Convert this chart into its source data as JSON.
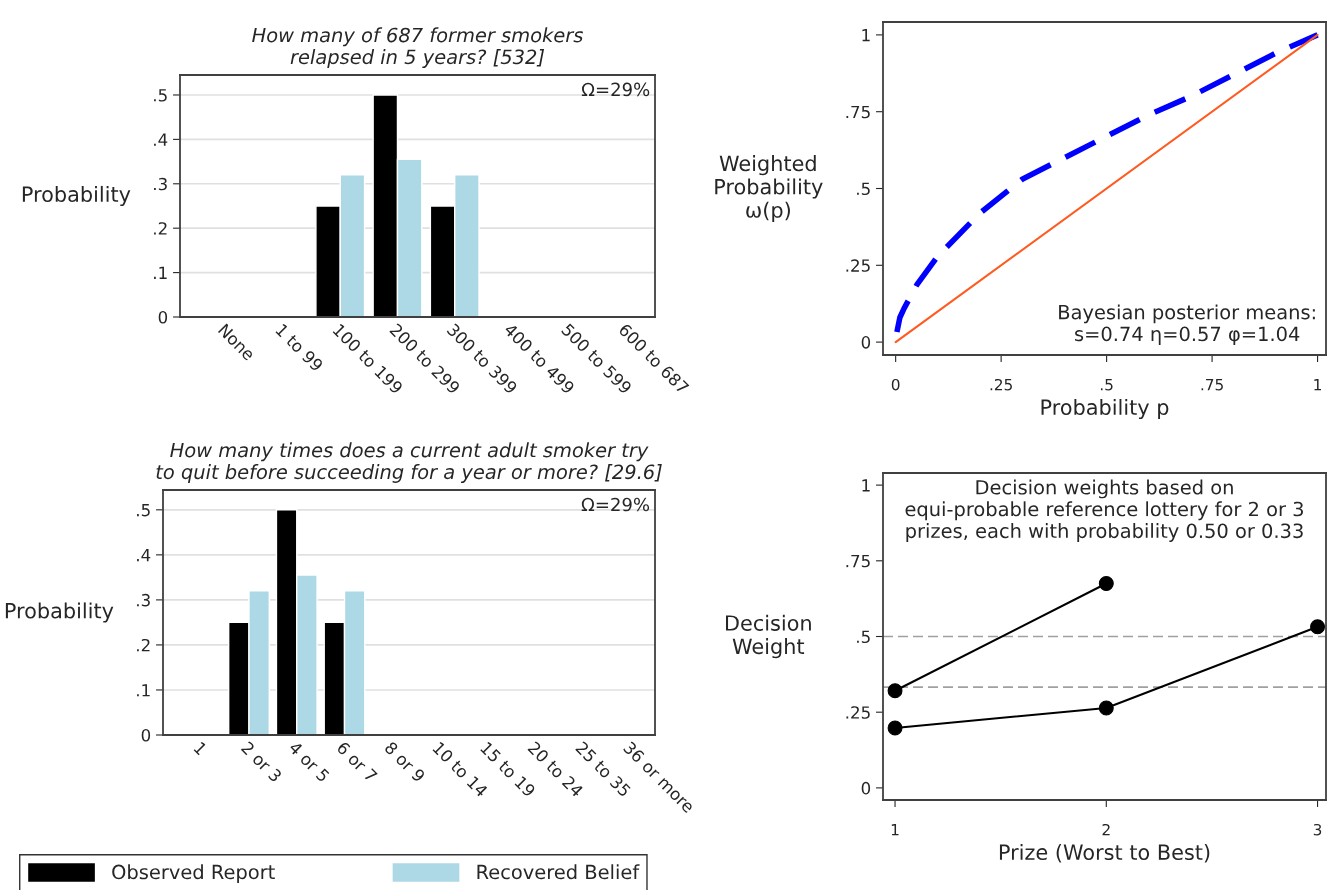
{
  "chart_data": [
    {
      "type": "bar",
      "title": "How many of 687 former smokers\nrelapsed in 5 years? [532]",
      "ylabel": "Probability",
      "annotations": [
        "Ω=29%"
      ],
      "categories": [
        "None",
        "1 to 99",
        "100 to 199",
        "200 to 299",
        "300 to 399",
        "400 to 499",
        "500 to 599",
        "600 to 687"
      ],
      "series": [
        {
          "color": "#000000",
          "values": [
            null,
            null,
            0.25,
            0.5,
            0.25,
            null,
            null,
            null
          ]
        },
        {
          "color": "#add8e6",
          "values": [
            null,
            null,
            0.32,
            0.355,
            0.32,
            null,
            null,
            null
          ]
        }
      ],
      "ylim": [
        0,
        0.545
      ],
      "yticks": [
        0,
        {
          "value": 0.1,
          "label": ".1"
        },
        {
          "value": 0.2,
          "label": ".2"
        },
        {
          "value": 0.3,
          "label": ".3"
        },
        {
          "value": 0.4,
          "label": ".4"
        },
        {
          "value": 0.5,
          "label": ".5"
        }
      ],
      "grid": "y"
    },
    {
      "type": "bar",
      "title": "How many times does a current adult smoker try\nto quit before succeeding for a year or more? [29.6]",
      "ylabel": "Probability",
      "annotations": [
        "Ω=29%"
      ],
      "categories": [
        "1",
        "2 or 3",
        "4 or 5",
        "6 or 7",
        "8 or 9",
        "10 to 14",
        "15 to 19",
        "20 to 24",
        "25 to 35",
        "36 or more"
      ],
      "series": [
        {
          "name": "Observed Report",
          "color": "#000000",
          "values": [
            null,
            0.25,
            0.5,
            0.25,
            null,
            null,
            null,
            null,
            null,
            null
          ]
        },
        {
          "name": "Recovered Belief",
          "color": "#add8e6",
          "values": [
            null,
            0.32,
            0.355,
            0.32,
            null,
            null,
            null,
            null,
            null,
            null
          ]
        }
      ],
      "ylim": [
        0,
        0.544
      ],
      "yticks": [
        0,
        {
          "value": 0.1,
          "label": ".1"
        },
        {
          "value": 0.2,
          "label": ".2"
        },
        {
          "value": 0.3,
          "label": ".3"
        },
        {
          "value": 0.4,
          "label": ".4"
        },
        {
          "value": 0.5,
          "label": ".5"
        }
      ],
      "grid": "y",
      "legend": "bottom"
    },
    {
      "type": "line",
      "xlabel": "Probability p",
      "ylabel": "Weighted\nProbability\nω(p)",
      "annotations": [
        "Bayesian posterior means:\ns=0.74 η=0.57 φ=1.04"
      ],
      "series": [
        {
          "color": "#0000ff",
          "line_style": "dashed",
          "x": [
            0.003,
            0.01,
            0.02,
            0.05,
            0.1,
            0.2,
            0.3,
            0.4,
            0.5,
            0.6,
            0.7,
            0.8,
            0.9,
            1.0
          ],
          "values": [
            0.033,
            0.08,
            0.11,
            0.186,
            0.28,
            0.42,
            0.53,
            0.6,
            0.67,
            0.74,
            0.8,
            0.87,
            0.94,
            1.0
          ]
        },
        {
          "color": "#ff5a1f",
          "line_style": "solid",
          "x": [
            0,
            1
          ],
          "values": [
            0,
            1
          ]
        }
      ],
      "xlim": [
        -0.03,
        1.02
      ],
      "ylim": [
        -0.042,
        1.042
      ],
      "xticks": [
        0,
        {
          "value": 0.25,
          "label": ".25"
        },
        {
          "value": 0.5,
          "label": ".5"
        },
        {
          "value": 0.75,
          "label": ".75"
        },
        1
      ],
      "yticks": [
        0,
        {
          "value": 0.25,
          "label": ".25"
        },
        {
          "value": 0.5,
          "label": ".5"
        },
        {
          "value": 0.75,
          "label": ".75"
        },
        1
      ]
    },
    {
      "type": "line",
      "xlabel": "Prize (Worst to Best)",
      "ylabel": "Decision\nWeight",
      "annotations": [
        "Decision weights based on\nequi-probable reference lottery for 2 or 3\nprizes, each with probability 0.50 or 0.33"
      ],
      "marker": "circle",
      "series": [
        {
          "color": "#000000",
          "x": [
            1,
            2
          ],
          "values": [
            0.321,
            0.675
          ]
        },
        {
          "color": "#000000",
          "x": [
            1,
            2,
            3
          ],
          "values": [
            0.198,
            0.264,
            0.532
          ]
        }
      ],
      "ref_lines": [
        {
          "axis": "y",
          "value": 0.5,
          "color": "#a0a0a0",
          "line_style": "dashed"
        },
        {
          "axis": "y",
          "value": 0.333,
          "color": "#a0a0a0",
          "line_style": "dashed"
        }
      ],
      "xlim": [
        0.943,
        3.04
      ],
      "ylim": [
        -0.04,
        1.04
      ],
      "xticks": [
        1,
        2,
        3
      ],
      "yticks": [
        0,
        {
          "value": 0.25,
          "label": ".25"
        },
        {
          "value": 0.5,
          "label": ".5"
        },
        {
          "value": 0.75,
          "label": ".75"
        },
        1
      ]
    }
  ]
}
